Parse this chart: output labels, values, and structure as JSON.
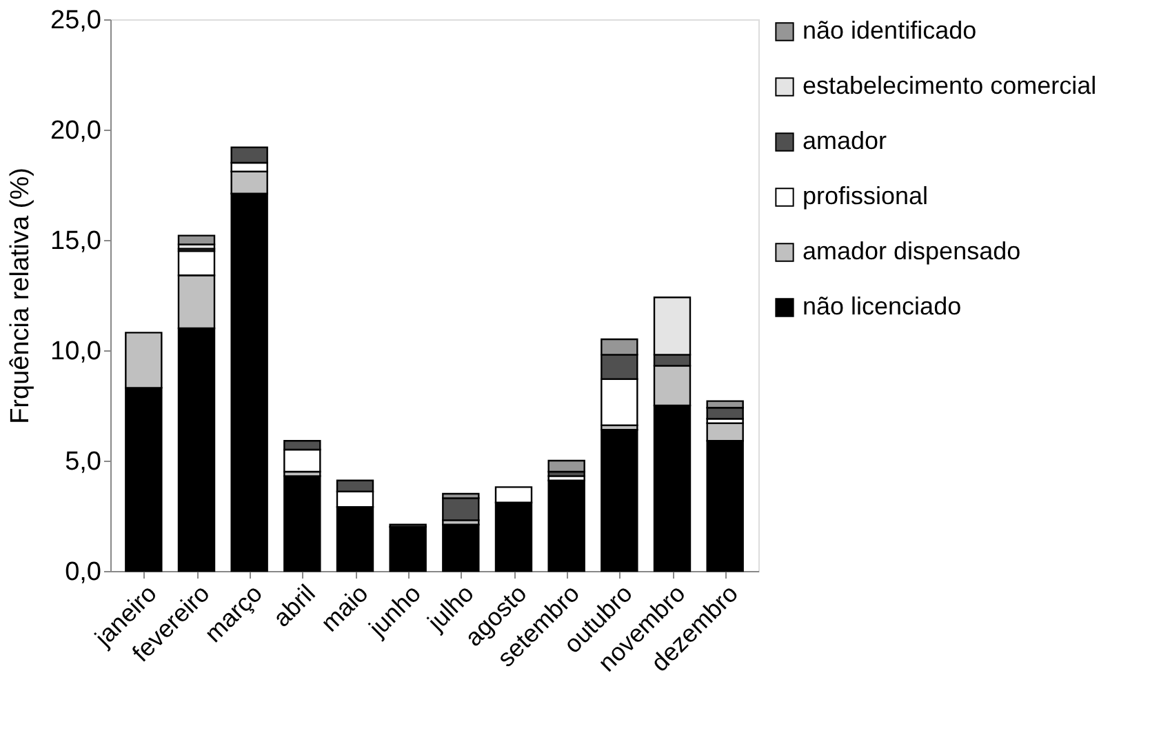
{
  "chart_data": {
    "type": "bar",
    "stacked": true,
    "ylabel": "Frquência relativa (%)",
    "categories": [
      "janeiro",
      "fevereiro",
      "março",
      "abril",
      "maio",
      "junho",
      "julho",
      "agosto",
      "setembro",
      "outubro",
      "novembro",
      "dezembro"
    ],
    "series": [
      {
        "name": "não licenciado",
        "color": "#000000",
        "values": [
          8.3,
          11.0,
          17.1,
          4.3,
          2.9,
          2.0,
          2.1,
          3.1,
          4.1,
          6.4,
          7.5,
          5.9
        ]
      },
      {
        "name": "amador dispensado",
        "color": "#c0c0c0",
        "values": [
          2.5,
          2.4,
          1.0,
          0.2,
          0,
          0,
          0.2,
          0,
          0,
          0.2,
          1.8,
          0.8
        ]
      },
      {
        "name": "profissional",
        "color": "#ffffff",
        "values": [
          0,
          1.1,
          0.4,
          1.0,
          0.7,
          0,
          0,
          0.7,
          0.2,
          2.1,
          0,
          0.2
        ]
      },
      {
        "name": "amador",
        "color": "#505050",
        "values": [
          0,
          0.1,
          0.7,
          0.4,
          0.5,
          0.1,
          1.0,
          0,
          0.2,
          1.1,
          0.5,
          0.5
        ]
      },
      {
        "name": "estabelecimento comercial",
        "color": "#e4e4e4",
        "values": [
          0,
          0.2,
          0,
          0,
          0,
          0,
          0,
          0,
          0,
          0,
          2.6,
          0
        ]
      },
      {
        "name": "não identificado",
        "color": "#969696",
        "values": [
          0,
          0.4,
          0,
          0,
          0,
          0,
          0.2,
          0,
          0.5,
          0.7,
          0,
          0.3
        ]
      }
    ],
    "ylim": [
      0,
      25
    ],
    "yticks": [
      {
        "value": 0,
        "label": "0,0"
      },
      {
        "value": 5,
        "label": "5,0"
      },
      {
        "value": 10,
        "label": "10,0"
      },
      {
        "value": 15,
        "label": "15,0"
      },
      {
        "value": 20,
        "label": "20,0"
      },
      {
        "value": 25,
        "label": "25,0"
      }
    ],
    "grid": false,
    "legend": "right"
  }
}
